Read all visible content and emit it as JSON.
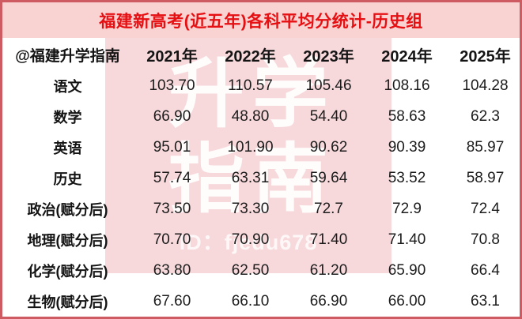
{
  "title": "福建新高考(近五年)各科平均分统计-历史组",
  "table": {
    "corner_label": "@福建升学指南",
    "year_headers": [
      "2021年",
      "2022年",
      "2023年",
      "2024年",
      "2025年"
    ],
    "rows": [
      {
        "subject": "语文",
        "values": [
          "103.70",
          "110.57",
          "105.46",
          "108.16",
          "104.28"
        ]
      },
      {
        "subject": "数学",
        "values": [
          "66.90",
          "48.80",
          "54.40",
          "58.63",
          "62.3"
        ]
      },
      {
        "subject": "英语",
        "values": [
          "95.01",
          "101.90",
          "90.62",
          "90.39",
          "85.97"
        ]
      },
      {
        "subject": "历史",
        "values": [
          "57.74",
          "63.31",
          "59.64",
          "53.52",
          "58.97"
        ]
      },
      {
        "subject": "政治(赋分后)",
        "values": [
          "73.50",
          "73.30",
          "72.7",
          "72.9",
          "72.4"
        ]
      },
      {
        "subject": "地理(赋分后)",
        "values": [
          "70.70",
          "70.90",
          "71.40",
          "71.40",
          "70.8"
        ]
      },
      {
        "subject": "化学(赋分后)",
        "values": [
          "63.80",
          "62.50",
          "61.20",
          "65.90",
          "66.4"
        ]
      },
      {
        "subject": "生物(赋分后)",
        "values": [
          "67.60",
          "66.10",
          "66.90",
          "66.00",
          "63.1"
        ]
      }
    ]
  },
  "watermark": {
    "line1": "升学",
    "line2": "指南",
    "id_text": "ID：fjedu678"
  },
  "colors": {
    "frame_border": "#cf5b62",
    "title_band_bg": "#f9d2d2",
    "title_text": "#e60f12",
    "watermark_pink": "#f0b2b8",
    "body_text": "#141414"
  },
  "chart_data": {
    "type": "table",
    "title": "福建新高考(近五年)各科平均分统计-历史组",
    "categories": [
      "2021年",
      "2022年",
      "2023年",
      "2024年",
      "2025年"
    ],
    "series": [
      {
        "name": "语文",
        "values": [
          103.7,
          110.57,
          105.46,
          108.16,
          104.28
        ]
      },
      {
        "name": "数学",
        "values": [
          66.9,
          48.8,
          54.4,
          58.63,
          62.3
        ]
      },
      {
        "name": "英语",
        "values": [
          95.01,
          101.9,
          90.62,
          90.39,
          85.97
        ]
      },
      {
        "name": "历史",
        "values": [
          57.74,
          63.31,
          59.64,
          53.52,
          58.97
        ]
      },
      {
        "name": "政治(赋分后)",
        "values": [
          73.5,
          73.3,
          72.7,
          72.9,
          72.4
        ]
      },
      {
        "name": "地理(赋分后)",
        "values": [
          70.7,
          70.9,
          71.4,
          71.4,
          70.8
        ]
      },
      {
        "name": "化学(赋分后)",
        "values": [
          63.8,
          62.5,
          61.2,
          65.9,
          66.4
        ]
      },
      {
        "name": "生物(赋分后)",
        "values": [
          67.6,
          66.1,
          66.9,
          66.0,
          63.1
        ]
      }
    ],
    "layout": {
      "header_row": "years",
      "first_column": "subjects",
      "gridlines": false
    }
  }
}
